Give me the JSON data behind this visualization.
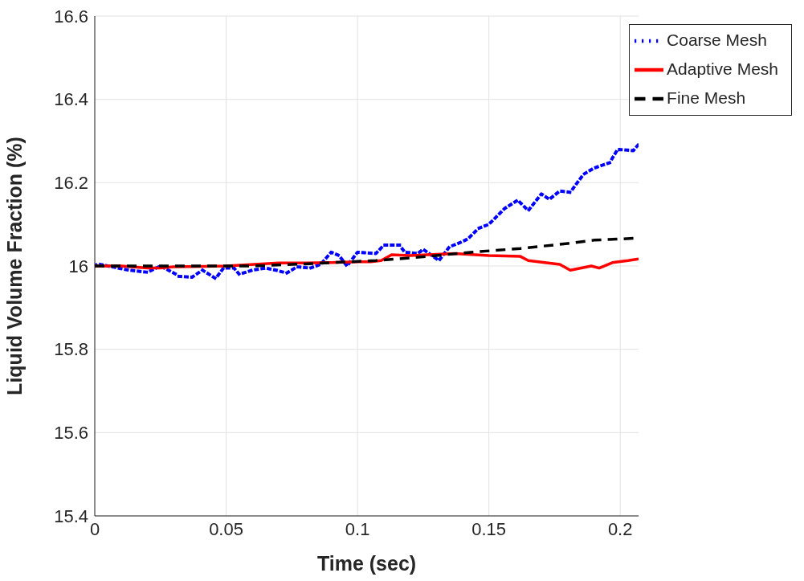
{
  "chart_data": {
    "type": "line",
    "xlabel": "Time (sec)",
    "ylabel": "Liquid Volume Fraction (%)",
    "xlim": [
      0,
      0.207
    ],
    "ylim": [
      15.4,
      16.6
    ],
    "xticks": [
      0,
      0.05,
      0.1,
      0.15,
      0.2
    ],
    "yticks": [
      15.4,
      15.6,
      15.8,
      16,
      16.2,
      16.4,
      16.6
    ],
    "grid": true,
    "legend": "top right",
    "marker": "none",
    "series": [
      {
        "name": "Coarse Mesh",
        "color": "#0000ff",
        "line_style": "dotted",
        "x": [
          0,
          0.001,
          0.013,
          0.02,
          0.025,
          0.031,
          0.032,
          0.037,
          0.041,
          0.046,
          0.049,
          0.053,
          0.055,
          0.06,
          0.065,
          0.069,
          0.073,
          0.077,
          0.077,
          0.082,
          0.086,
          0.09,
          0.093,
          0.096,
          0.1,
          0.1,
          0.107,
          0.11,
          0.116,
          0.118,
          0.123,
          0.125,
          0.131,
          0.135,
          0.139,
          0.142,
          0.146,
          0.15,
          0.156,
          0.161,
          0.165,
          0.17,
          0.173,
          0.177,
          0.181,
          0.186,
          0.19,
          0.196,
          0.199,
          0.205,
          0.207
        ],
        "values": [
          16,
          16.005,
          15.99,
          15.985,
          16.0,
          15.98,
          15.975,
          15.973,
          15.99,
          15.97,
          15.995,
          15.995,
          15.98,
          15.99,
          15.995,
          15.99,
          15.983,
          15.998,
          15.998,
          15.995,
          16.004,
          16.033,
          16.025,
          16.0,
          16.033,
          16.033,
          16.03,
          16.05,
          16.05,
          16.033,
          16.03,
          16.04,
          16.013,
          16.046,
          16.056,
          16.065,
          16.09,
          16.1,
          16.138,
          16.158,
          16.133,
          16.173,
          16.16,
          16.18,
          16.177,
          16.22,
          16.235,
          16.248,
          16.28,
          16.277,
          16.292
        ]
      },
      {
        "name": "Adaptive Mesh",
        "color": "#ff0000",
        "line_style": "solid",
        "x": [
          0,
          0.01,
          0.02,
          0.025,
          0.03,
          0.05,
          0.07,
          0.08,
          0.09,
          0.1,
          0.105,
          0.109,
          0.113,
          0.12,
          0.137,
          0.15,
          0.162,
          0.165,
          0.177,
          0.181,
          0.189,
          0.192,
          0.197,
          0.203,
          0.207
        ],
        "values": [
          16,
          16,
          15.995,
          15.995,
          15.998,
          16,
          16.007,
          16.007,
          16.008,
          16.01,
          16.01,
          16.013,
          16.027,
          16.025,
          16.03,
          16.025,
          16.023,
          16.013,
          16.004,
          15.99,
          16,
          15.995,
          16.008,
          16.013,
          16.017
        ]
      },
      {
        "name": "Fine Mesh",
        "color": "#000000",
        "line_style": "dashed",
        "x": [
          0,
          0.03,
          0.06,
          0.08,
          0.107,
          0.125,
          0.143,
          0.162,
          0.171,
          0.18,
          0.19,
          0.207
        ],
        "values": [
          16,
          16,
          16,
          16.005,
          16.013,
          16.022,
          16.033,
          16.042,
          16.048,
          16.054,
          16.062,
          16.067
        ]
      }
    ]
  }
}
